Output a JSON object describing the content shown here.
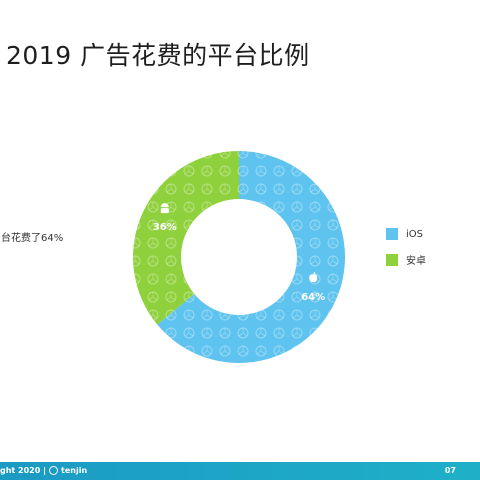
{
  "slide": {
    "title": "2019 广告花费的平台比例",
    "annotation": "台花费了64%",
    "footer": {
      "copyright": "ght 2020 |",
      "brand": "tenjin",
      "page_number": "07"
    }
  },
  "chart_data": {
    "type": "pie",
    "subtype": "donut",
    "slices": [
      {
        "name": "iOS",
        "value": 64,
        "label": "64%",
        "color": "#5ec3ee",
        "icon": "apple-icon"
      },
      {
        "name": "安卓",
        "value": 36,
        "label": "36%",
        "color": "#8fd13d",
        "icon": "android-icon"
      }
    ],
    "legend": {
      "position": "right"
    }
  }
}
